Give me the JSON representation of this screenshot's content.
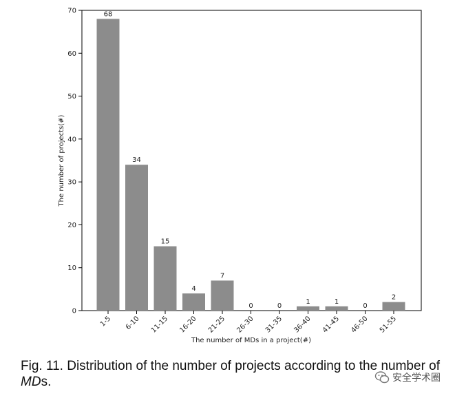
{
  "chart_data": {
    "type": "bar",
    "categories": [
      "1-5",
      "6-10",
      "11-15",
      "16-20",
      "21-25",
      "26-30",
      "31-35",
      "36-40",
      "41-45",
      "46-50",
      "51-55"
    ],
    "values": [
      68,
      34,
      15,
      4,
      7,
      0,
      0,
      1,
      1,
      0,
      2
    ],
    "xlabel": "The number of MDs in a project(#)",
    "ylabel": "The number of projects(#)",
    "ylim": [
      0,
      70
    ],
    "yticks": [
      0,
      10,
      20,
      30,
      40,
      50,
      60,
      70
    ],
    "bar_color": "#8c8c8c",
    "grid": false,
    "data_labels": true
  },
  "caption": {
    "prefix": "Fig. 11. Distribution of the number of projects according to the number of ",
    "emph": "MD",
    "suffix": "s."
  },
  "watermark": {
    "text": "安全学术圈",
    "icon": "wechat-icon"
  }
}
